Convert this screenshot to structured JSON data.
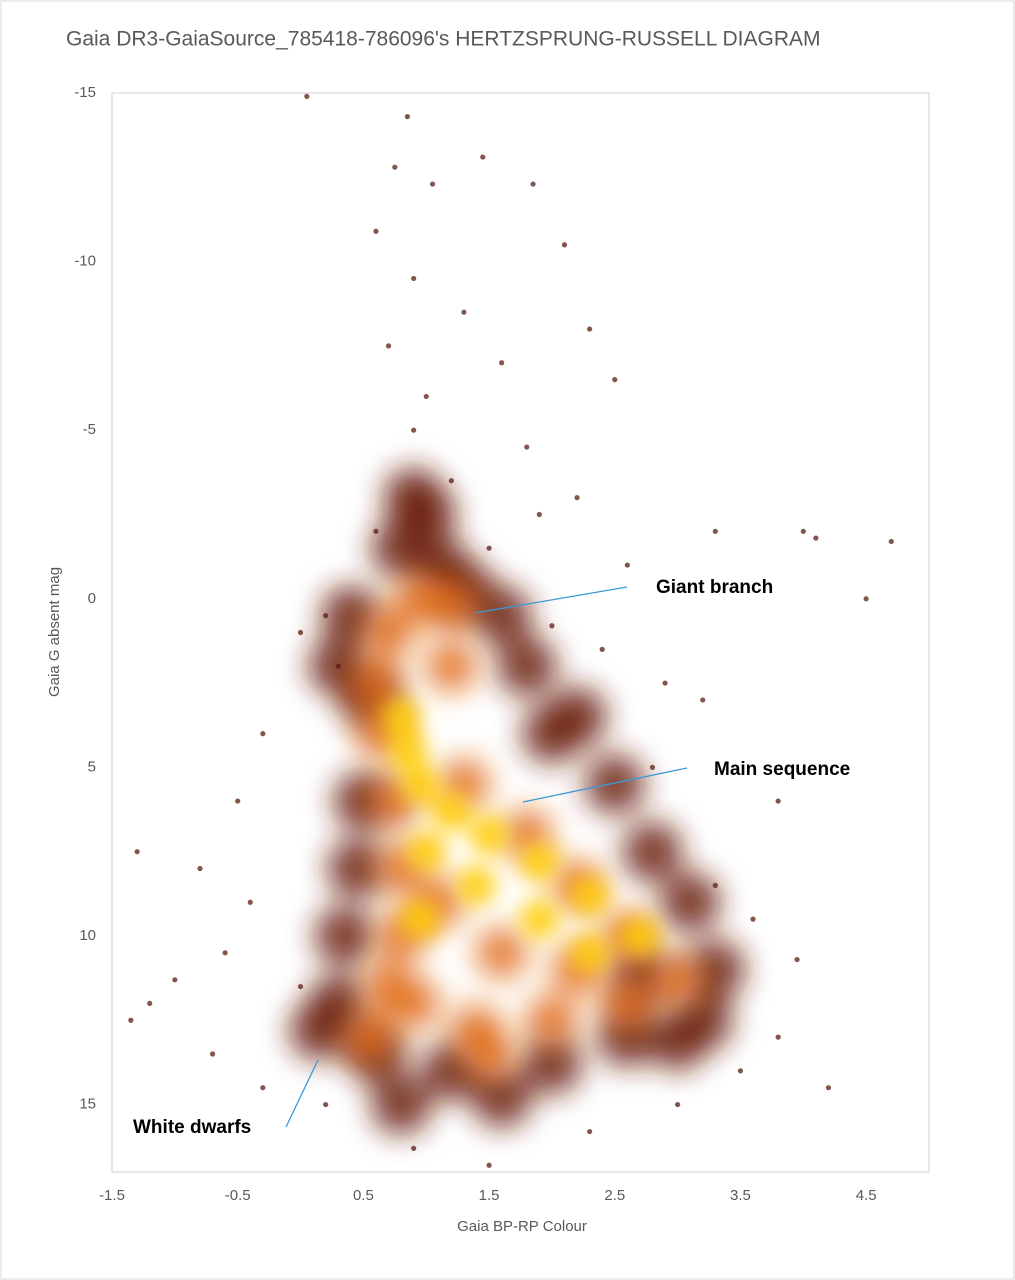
{
  "chart_data": {
    "type": "scatter",
    "title": "Gaia DR3-GaiaSource_785418-786096's HERTZSPRUNG-RUSSELL DIAGRAM",
    "x_label": "Gaia BP-RP Colour",
    "y_label": "Gaia G absent mag",
    "xlim": [
      -1.5,
      5.0
    ],
    "xticks": [
      -1.5,
      -0.5,
      0.5,
      1.5,
      2.5,
      3.5,
      4.5
    ],
    "ylim": [
      17,
      -15
    ],
    "yticks": [
      -15,
      -10,
      -5,
      0,
      5,
      10,
      15
    ],
    "grid": false,
    "series": [
      {
        "color": "#5a1e12",
        "x": [
          0.05,
          0.85,
          0.75,
          1.45,
          1.05,
          0.6,
          1.85,
          2.1,
          0.9,
          1.3,
          2.3,
          0.7,
          1.6,
          2.5,
          1.0,
          0.9,
          1.8,
          1.2,
          2.2,
          3.3,
          4.0,
          4.7,
          0.6,
          1.5,
          2.6,
          4.5,
          0.0,
          0.3,
          2.4,
          3.2,
          -0.3,
          -0.5,
          2.8,
          3.8,
          -0.8,
          -1.3,
          3.3,
          -0.6,
          3.6,
          3.95,
          -1.0,
          -1.2,
          -1.35,
          -0.7,
          3.8,
          4.2,
          -0.3,
          0.2,
          0.9,
          1.5,
          2.3,
          3.0,
          3.5,
          -0.4,
          0.0,
          2.0,
          0.2,
          1.9,
          2.9,
          4.1
        ],
        "y": [
          -14.9,
          -14.3,
          -12.8,
          -13.1,
          -12.3,
          -10.9,
          -12.3,
          -10.5,
          -9.5,
          -8.5,
          -8,
          -7.5,
          -7,
          -6.5,
          -6,
          -5,
          -4.5,
          -3.5,
          -3,
          -2,
          -2,
          -1.7,
          -2,
          -1.5,
          -1,
          0,
          1,
          2,
          1.5,
          3,
          4,
          6,
          5,
          6,
          8,
          7.5,
          8.5,
          10.5,
          9.5,
          10.7,
          11.3,
          12,
          12.5,
          13.5,
          13,
          14.5,
          14.5,
          15,
          16.3,
          16.8,
          15.8,
          15,
          14,
          9,
          11.5,
          0.8,
          0.5,
          -2.5,
          2.5,
          -1.8
        ]
      },
      {
        "color": "#6b1c08",
        "x": [
          0.9,
          0.8,
          1.1,
          0.4,
          0.3,
          0.55,
          1.6,
          1.8,
          2.2,
          2.5,
          2.8,
          3.1,
          3.3,
          3.2,
          2.6,
          2.0,
          1.2,
          0.6,
          0.3,
          0.35,
          0.45,
          0.5,
          0.15,
          1.0,
          1.3,
          2.0,
          2.7,
          0.8,
          1.6,
          3.0
        ],
        "y": [
          -3,
          -1.5,
          -1,
          0.5,
          2,
          3,
          0.5,
          2,
          3.5,
          5.5,
          7.5,
          9,
          11,
          12.5,
          13,
          13.8,
          14,
          13.5,
          12,
          10,
          8,
          6,
          12.8,
          -2.5,
          -0.3,
          4,
          11.2,
          15,
          14.8,
          13.1
        ]
      },
      {
        "color": "#e0660f",
        "x": [
          0.95,
          1.2,
          0.7,
          0.6,
          0.65,
          0.75,
          0.8,
          0.8,
          0.9,
          1.4,
          2.0,
          2.6,
          3.0,
          2.6,
          2.2,
          1.8,
          1.3,
          1.1,
          1.6,
          2.2,
          0.7,
          1.2,
          1.5,
          0.55
        ],
        "y": [
          0,
          0.2,
          1,
          2.5,
          4,
          6,
          8,
          10,
          12,
          12.8,
          12.5,
          12,
          11.3,
          10,
          8.5,
          7,
          5.5,
          9,
          10.5,
          11,
          11.5,
          2,
          13.5,
          13
        ]
      },
      {
        "color": "#ffcc00",
        "x": [
          0.8,
          0.85,
          0.95,
          1.2,
          1.5,
          1.9,
          2.3,
          2.7,
          1.0,
          1.4,
          1.9,
          2.3,
          0.95
        ],
        "y": [
          3.5,
          4.5,
          5.5,
          6.3,
          7,
          7.8,
          8.8,
          10,
          7.5,
          8.5,
          9.5,
          10.5,
          9.5
        ]
      }
    ],
    "annotations": [
      {
        "text": "Giant branch"
      },
      {
        "text": "Main sequence"
      },
      {
        "text": "White dwarfs"
      }
    ]
  }
}
